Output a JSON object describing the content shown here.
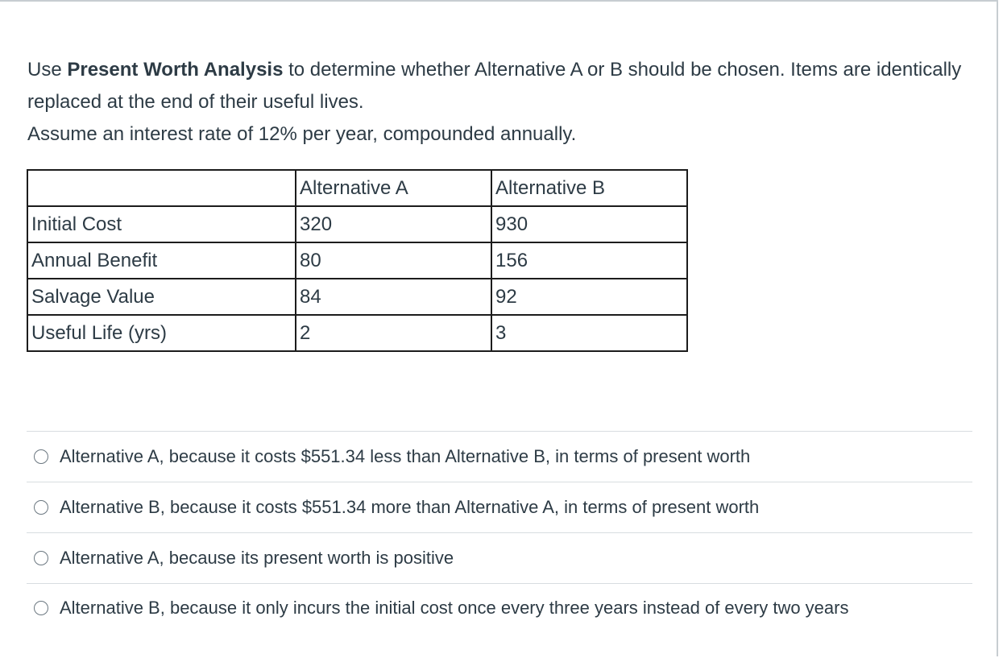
{
  "question": {
    "prefix": "Use ",
    "bold": "Present Worth Analysis",
    "line1_rest": " to determine whether Alternative A or B should be chosen. Items are identically replaced at the end of their useful lives.",
    "line2": "Assume an interest rate of 12% per year, compounded annually."
  },
  "table": {
    "headers": [
      "",
      "Alternative A",
      "Alternative B"
    ],
    "rows": [
      [
        "Initial Cost",
        "320",
        "930"
      ],
      [
        "Annual Benefit",
        "80",
        "156"
      ],
      [
        "Salvage Value",
        "84",
        "92"
      ],
      [
        "Useful Life (yrs)",
        "2",
        "3"
      ]
    ]
  },
  "answers": [
    "Alternative A, because it costs $551.34 less than Alternative B, in terms of present worth",
    "Alternative B, because it costs $551.34 more than Alternative A, in terms of present worth",
    "Alternative A, because its present worth is positive",
    "Alternative B, because it only incurs the initial cost once every three years instead of every two years"
  ]
}
